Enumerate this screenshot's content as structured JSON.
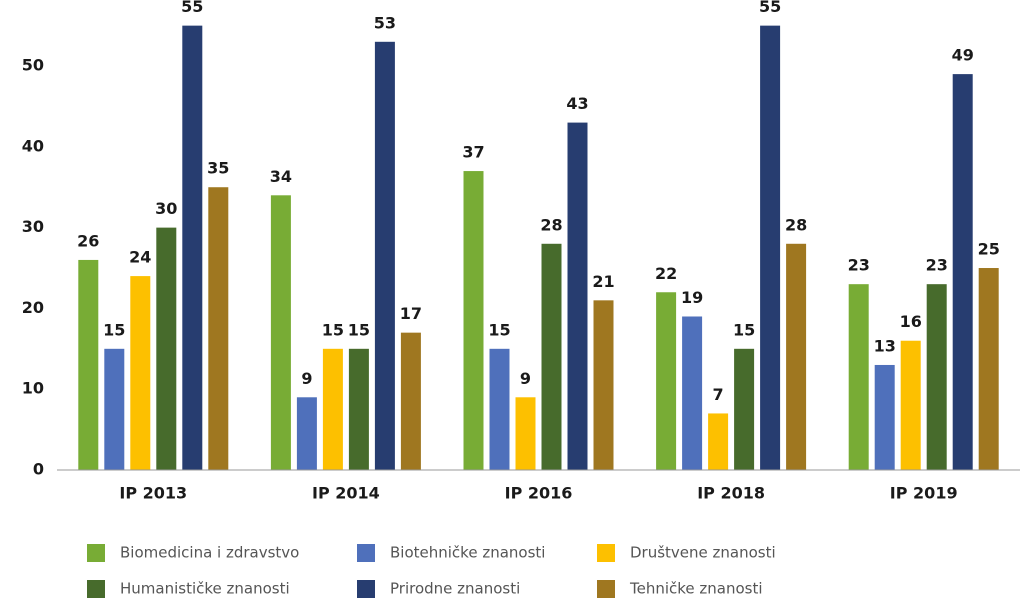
{
  "chart_data": {
    "type": "bar",
    "categories": [
      "IP 2013",
      "IP 2014",
      "IP 2016",
      "IP 2018",
      "IP 2019"
    ],
    "series": [
      {
        "name": "Biomedicina i zdravstvo",
        "color": "#78ac35",
        "values": [
          26,
          34,
          37,
          22,
          23
        ]
      },
      {
        "name": "Biotehničke znanosti",
        "color": "#4f70bb",
        "values": [
          15,
          9,
          15,
          19,
          13
        ]
      },
      {
        "name": "Društvene znanosti",
        "color": "#fdc000",
        "values": [
          24,
          15,
          9,
          7,
          16
        ]
      },
      {
        "name": "Humanističke znanosti",
        "color": "#476b2c",
        "values": [
          30,
          15,
          28,
          15,
          23
        ]
      },
      {
        "name": "Prirodne znanosti",
        "color": "#273d70",
        "values": [
          55,
          53,
          43,
          55,
          49
        ]
      },
      {
        "name": "Tehničke znanosti",
        "color": "#9f7720",
        "values": [
          35,
          17,
          21,
          28,
          25
        ]
      }
    ],
    "ylim": [
      0,
      58
    ],
    "yticks": [
      0,
      10,
      20,
      30,
      40,
      50
    ],
    "grid": false,
    "legend": "bottom"
  }
}
